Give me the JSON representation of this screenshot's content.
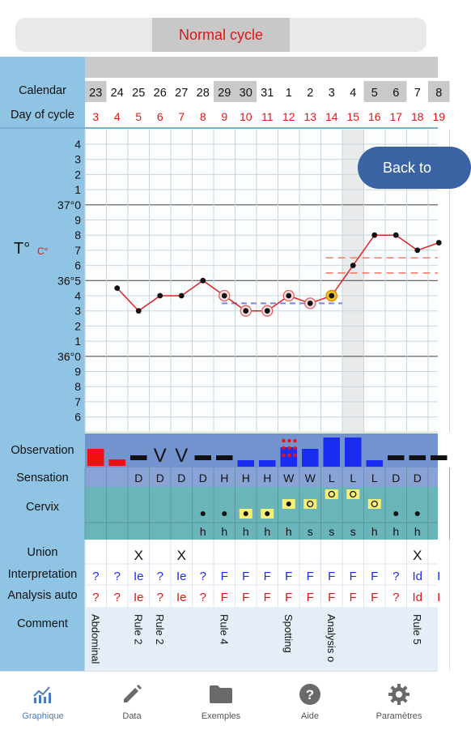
{
  "segment": {
    "label": "Normal cycle"
  },
  "row_labels": {
    "calendar": "Calendar",
    "day_of_cycle": "Day of cycle",
    "temp_symbol": "T°",
    "temp_unit": "C°",
    "observation": "Observation",
    "sensation": "Sensation",
    "cervix": "Cervix",
    "union": "Union",
    "interpretation": "Interpretation",
    "analysis_auto": "Analysis auto",
    "comment": "Comment"
  },
  "temp_axis_labels": [
    "4",
    "3",
    "2",
    "1",
    "37°0",
    "9",
    "8",
    "7",
    "6",
    "36°5",
    "4",
    "3",
    "2",
    "1",
    "36°0",
    "9",
    "8",
    "7",
    "6"
  ],
  "columns": [
    {
      "cal": "23",
      "day": "3",
      "cal_shaded": true,
      "sens": "",
      "cervix_pos": "",
      "cervix_tex": "",
      "union": "",
      "interp": "?",
      "analysis": "?",
      "comment": "Abdominal"
    },
    {
      "cal": "24",
      "day": "4",
      "cal_shaded": false,
      "sens": "",
      "cervix_pos": "",
      "cervix_tex": "",
      "union": "",
      "interp": "?",
      "analysis": "?",
      "comment": ""
    },
    {
      "cal": "25",
      "day": "5",
      "cal_shaded": false,
      "sens": "D",
      "cervix_pos": "",
      "cervix_tex": "",
      "union": "X",
      "interp": "Ie",
      "analysis": "Ie",
      "comment": "Rule 2"
    },
    {
      "cal": "26",
      "day": "6",
      "cal_shaded": false,
      "sens": "D",
      "cervix_pos": "",
      "cervix_tex": "",
      "union": "",
      "interp": "?",
      "analysis": "?",
      "comment": "Rule 2"
    },
    {
      "cal": "27",
      "day": "7",
      "cal_shaded": false,
      "sens": "D",
      "cervix_pos": "",
      "cervix_tex": "",
      "union": "X",
      "interp": "Ie",
      "analysis": "Ie",
      "comment": ""
    },
    {
      "cal": "28",
      "day": "8",
      "cal_shaded": false,
      "sens": "D",
      "cervix_pos": "low-closed",
      "cervix_tex": "h",
      "union": "",
      "interp": "?",
      "analysis": "?",
      "comment": ""
    },
    {
      "cal": "29",
      "day": "9",
      "cal_shaded": true,
      "sens": "H",
      "cervix_pos": "low-closed",
      "cervix_tex": "h",
      "union": "",
      "interp": "F",
      "analysis": "F",
      "comment": "Rule 4"
    },
    {
      "cal": "30",
      "day": "10",
      "cal_shaded": true,
      "sens": "H",
      "cervix_pos": "low-box",
      "cervix_tex": "h",
      "union": "",
      "interp": "F",
      "analysis": "F",
      "comment": ""
    },
    {
      "cal": "31",
      "day": "11",
      "cal_shaded": false,
      "sens": "H",
      "cervix_pos": "low-box",
      "cervix_tex": "h",
      "union": "",
      "interp": "F",
      "analysis": "F",
      "comment": ""
    },
    {
      "cal": "1",
      "day": "12",
      "cal_shaded": false,
      "sens": "W",
      "cervix_pos": "mid-closed",
      "cervix_tex": "h",
      "union": "",
      "interp": "F",
      "analysis": "F",
      "comment": "Spotting"
    },
    {
      "cal": "2",
      "day": "13",
      "cal_shaded": false,
      "sens": "W",
      "cervix_pos": "mid-open",
      "cervix_tex": "s",
      "union": "",
      "interp": "F",
      "analysis": "F",
      "comment": ""
    },
    {
      "cal": "3",
      "day": "14",
      "cal_shaded": false,
      "sens": "L",
      "cervix_pos": "high-open",
      "cervix_tex": "s",
      "union": "",
      "interp": "F",
      "analysis": "F",
      "comment": "Analysis o"
    },
    {
      "cal": "4",
      "day": "15",
      "cal_shaded": false,
      "sens": "L",
      "cervix_pos": "high-open",
      "cervix_tex": "s",
      "union": "",
      "interp": "F",
      "analysis": "F",
      "comment": ""
    },
    {
      "cal": "5",
      "day": "16",
      "cal_shaded": true,
      "sens": "L",
      "cervix_pos": "mid-open",
      "cervix_tex": "h",
      "union": "",
      "interp": "F",
      "analysis": "F",
      "comment": ""
    },
    {
      "cal": "6",
      "day": "17",
      "cal_shaded": true,
      "sens": "D",
      "cervix_pos": "low-closed",
      "cervix_tex": "h",
      "union": "",
      "interp": "?",
      "analysis": "?",
      "comment": ""
    },
    {
      "cal": "7",
      "day": "18",
      "cal_shaded": false,
      "sens": "D",
      "cervix_pos": "low-closed",
      "cervix_tex": "h",
      "union": "X",
      "interp": "Id",
      "analysis": "Id",
      "comment": "Rule 5"
    },
    {
      "cal": "8",
      "day": "19",
      "cal_shaded": true,
      "sens": "",
      "cervix_pos": "",
      "cervix_tex": "",
      "union": "",
      "interp": "I",
      "analysis": "I",
      "comment": ""
    }
  ],
  "chart_data": {
    "type": "line",
    "x": [
      3,
      4,
      5,
      6,
      7,
      8,
      9,
      10,
      11,
      12,
      13,
      14,
      15,
      16,
      17,
      18,
      19
    ],
    "temperatures": [
      null,
      36.45,
      36.3,
      36.4,
      36.4,
      36.5,
      36.4,
      36.3,
      36.3,
      36.4,
      36.35,
      36.4,
      36.6,
      36.8,
      36.8,
      36.7,
      36.75
    ],
    "circled_days": [
      9,
      10,
      11,
      12,
      13
    ],
    "highlighted_day": 14,
    "shaded_day": 15,
    "coverline": 36.35,
    "high_lines": [
      36.65,
      36.55
    ],
    "ylim": [
      35.55,
      37.45
    ],
    "line_color": "#e02020"
  },
  "observation_marks": [
    "red-tall",
    "red-short",
    "black-bar",
    "V",
    "V",
    "black-bar",
    "black-bar",
    "blue-short",
    "blue-short",
    "spotting",
    "blue-mid",
    "blue-tall",
    "blue-tall",
    "blue-short",
    "black-bar",
    "black-bar",
    "black-bar"
  ],
  "back_button": {
    "label": "Back to"
  },
  "nav": [
    {
      "label": "Graphique",
      "icon": "chart-icon",
      "active": true
    },
    {
      "label": "Data",
      "icon": "pencil-icon",
      "active": false
    },
    {
      "label": "Exemples",
      "icon": "folder-icon",
      "active": false
    },
    {
      "label": "Aide",
      "icon": "help-icon",
      "active": false
    },
    {
      "label": "Paramètres",
      "icon": "gear-icon",
      "active": false
    }
  ],
  "colors": {
    "sidebar": "#8fc4e4",
    "observation_band": "#7393cf",
    "cervix_band": "#6ab5ba",
    "accent_red": "#e01515",
    "accent_blue": "#1a2cf0",
    "button": "#3a63a4"
  }
}
